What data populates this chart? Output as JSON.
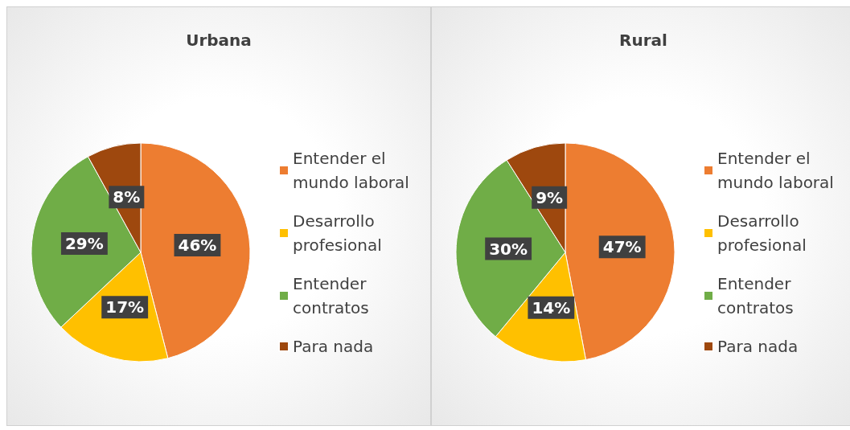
{
  "chart_data": [
    {
      "type": "pie",
      "title": "Urbana",
      "categories": [
        "Entender el mundo laboral",
        "Desarrollo profesional",
        "Entender contratos",
        "Para nada"
      ],
      "values": [
        46,
        17,
        29,
        8
      ],
      "colors": [
        "#ed7d31",
        "#ffc000",
        "#70ad47",
        "#9e480e"
      ],
      "value_labels": [
        "46%",
        "17%",
        "29%",
        "8%"
      ],
      "legend": "right"
    },
    {
      "type": "pie",
      "title": "Rural",
      "categories": [
        "Entender el mundo laboral",
        "Desarrollo profesional",
        "Entender contratos",
        "Para nada"
      ],
      "values": [
        47,
        14,
        30,
        9
      ],
      "colors": [
        "#ed7d31",
        "#ffc000",
        "#70ad47",
        "#9e480e"
      ],
      "value_labels": [
        "47%",
        "14%",
        "30%",
        "9%"
      ],
      "legend": "right"
    }
  ]
}
